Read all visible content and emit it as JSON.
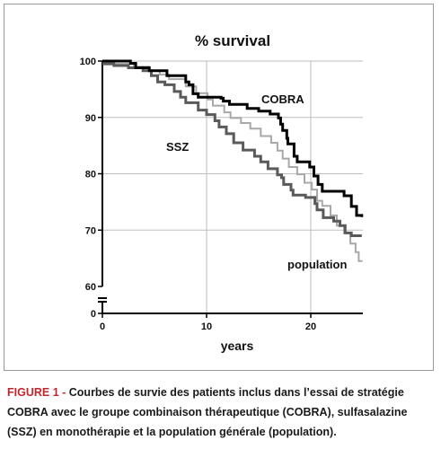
{
  "chart_data": {
    "type": "line",
    "title": "% survival",
    "xlabel": "years",
    "ylabel": "",
    "xlim": [
      0,
      25
    ],
    "ylim": [
      60,
      100
    ],
    "y_axis_break": true,
    "break_value": 0,
    "xticks": [
      0,
      10,
      20
    ],
    "yticks": [
      60,
      70,
      80,
      90,
      100
    ],
    "grid": true,
    "series": [
      {
        "name": "COBRA",
        "color": "#000000",
        "step_points": [
          [
            0,
            100
          ],
          [
            2.7,
            99.6
          ],
          [
            2.7,
            99.6
          ],
          [
            3.2,
            98.8
          ],
          [
            4.5,
            98.3
          ],
          [
            6.2,
            97.4
          ],
          [
            8,
            96.3
          ],
          [
            8.3,
            95.8
          ],
          [
            8.7,
            94.2
          ],
          [
            9.2,
            93.6
          ],
          [
            11.4,
            93.4
          ],
          [
            11.6,
            92.9
          ],
          [
            12.2,
            92.3
          ],
          [
            13.9,
            91.6
          ],
          [
            15,
            91.1
          ],
          [
            16.1,
            90.6
          ],
          [
            16.9,
            89.9
          ],
          [
            17.1,
            88.8
          ],
          [
            17.3,
            87.7
          ],
          [
            17.7,
            86.3
          ],
          [
            17.8,
            85.3
          ],
          [
            18.4,
            83.1
          ],
          [
            18.7,
            82.1
          ],
          [
            19.9,
            81.2
          ],
          [
            20.3,
            79.6
          ],
          [
            20.7,
            78.1
          ],
          [
            21.1,
            76.9
          ],
          [
            23.2,
            76.1
          ],
          [
            23.9,
            74.2
          ],
          [
            24.4,
            72.6
          ],
          [
            24.9,
            72.3
          ]
        ]
      },
      {
        "name": "SSZ",
        "color": "#5a5a5a",
        "step_points": [
          [
            0,
            99.5
          ],
          [
            1.1,
            99.2
          ],
          [
            2.5,
            98.8
          ],
          [
            3.9,
            98.3
          ],
          [
            4.7,
            97.4
          ],
          [
            5.3,
            96.3
          ],
          [
            6,
            95.8
          ],
          [
            6.9,
            94.6
          ],
          [
            7.5,
            93.6
          ],
          [
            8,
            92.6
          ],
          [
            9.2,
            91.3
          ],
          [
            10,
            90.5
          ],
          [
            10.8,
            89.4
          ],
          [
            11.2,
            88.3
          ],
          [
            11.9,
            87.1
          ],
          [
            12.6,
            85.5
          ],
          [
            13.5,
            84.2
          ],
          [
            14.6,
            83.1
          ],
          [
            15.2,
            82.1
          ],
          [
            15.9,
            80.9
          ],
          [
            16.8,
            79.8
          ],
          [
            17.2,
            79.3
          ],
          [
            17.4,
            78.1
          ],
          [
            18.1,
            77.1
          ],
          [
            18.3,
            76.2
          ],
          [
            19.5,
            75.8
          ],
          [
            20.4,
            74.7
          ],
          [
            20.6,
            73.6
          ],
          [
            21.2,
            72.2
          ],
          [
            22.2,
            71.6
          ],
          [
            22.8,
            70.8
          ],
          [
            23.3,
            69.5
          ],
          [
            23.9,
            69
          ],
          [
            24.9,
            69
          ]
        ]
      },
      {
        "name": "population",
        "color": "#a8a8a8",
        "step_points": [
          [
            0,
            100
          ],
          [
            1,
            99.5
          ],
          [
            3,
            99
          ],
          [
            4.5,
            98.3
          ],
          [
            5.5,
            97.6
          ],
          [
            6.4,
            96.8
          ],
          [
            8,
            95.5
          ],
          [
            9,
            94.3
          ],
          [
            10.1,
            93.2
          ],
          [
            10.6,
            92.1
          ],
          [
            11.7,
            90.9
          ],
          [
            12.3,
            89.9
          ],
          [
            13.3,
            89
          ],
          [
            14.2,
            88
          ],
          [
            15.2,
            86.7
          ],
          [
            16.2,
            85.5
          ],
          [
            16.8,
            84.1
          ],
          [
            17.3,
            82.7
          ],
          [
            17.9,
            81.2
          ],
          [
            18.7,
            79.9
          ],
          [
            19.4,
            78.4
          ],
          [
            20.1,
            77.2
          ],
          [
            20.6,
            75.2
          ],
          [
            21.1,
            74.3
          ],
          [
            21.9,
            72.6
          ],
          [
            22.5,
            70.8
          ],
          [
            23.2,
            69.5
          ],
          [
            23.8,
            67.6
          ],
          [
            24.3,
            66.1
          ],
          [
            24.6,
            64.5
          ],
          [
            24.9,
            64.4
          ]
        ]
      }
    ]
  },
  "labels": {
    "title": "% survival",
    "xlabel": "years",
    "cobra": "COBRA",
    "ssz": "SSZ",
    "population": "population"
  },
  "caption": {
    "label": "FIGURE 1 -",
    "text": " Courbes de survie des patients inclus dans l’essai de stratégie COBRA avec le groupe combinaison thérapeutique (COBRA), sulfasalazine (SSZ) en monothérapie et la population générale (population)."
  }
}
